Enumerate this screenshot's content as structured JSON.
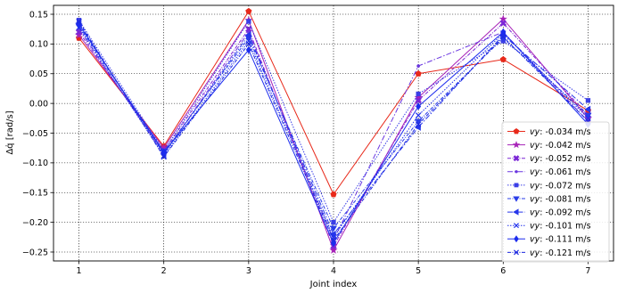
{
  "chart_data": {
    "type": "line",
    "xlabel": "Joint index",
    "ylabel": "Δq̇ [rad/s]",
    "x": [
      1,
      2,
      3,
      4,
      5,
      6,
      7
    ],
    "xlim": [
      0.7,
      7.3
    ],
    "ylim": [
      -0.265,
      0.165
    ],
    "xticks": [
      1,
      2,
      3,
      4,
      5,
      6,
      7
    ],
    "yticks": [
      0.15,
      0.1,
      0.05,
      0.0,
      -0.05,
      -0.1,
      -0.15,
      -0.2,
      -0.25
    ],
    "ytick_labels": [
      "0.15",
      "0.10",
      "0.05",
      "0.00",
      "−0.05",
      "−0.10",
      "−0.15",
      "−0.20",
      "−0.25"
    ],
    "grid": true,
    "legend_position": "lower-right",
    "series": [
      {
        "name": "-0.034 m/s",
        "prefix": "vy",
        "color": "#e8291a",
        "marker": "pentagon",
        "dash": "",
        "values": [
          0.11,
          -0.072,
          0.155,
          -0.153,
          0.05,
          0.074,
          -0.012
        ]
      },
      {
        "name": "-0.042 m/s",
        "prefix": "vy",
        "color": "#a722b8",
        "marker": "star",
        "dash": "",
        "values": [
          0.115,
          -0.075,
          0.14,
          -0.247,
          0.01,
          0.142,
          -0.025
        ]
      },
      {
        "name": "-0.052 m/s",
        "prefix": "vy",
        "color": "#7b27d6",
        "marker": "x-thick",
        "dash": "4,1.5,1,1.5",
        "values": [
          0.12,
          -0.08,
          0.125,
          -0.24,
          0.005,
          0.135,
          -0.02
        ]
      },
      {
        "name": "-0.061 m/s",
        "prefix": "vy",
        "color": "#6a36e0",
        "marker": "dot",
        "dash": "6,2,1.5,2",
        "values": [
          0.125,
          -0.085,
          0.12,
          -0.23,
          0.063,
          0.12,
          -0.03
        ]
      },
      {
        "name": "-0.072 m/s",
        "prefix": "vy",
        "color": "#3b3ee6",
        "marker": "square",
        "dash": "1.5,1.5",
        "values": [
          0.14,
          -0.08,
          0.138,
          -0.2,
          0.016,
          0.105,
          0.005
        ]
      },
      {
        "name": "-0.081 m/s",
        "prefix": "vy",
        "color": "#2a3ce8",
        "marker": "triangle-down",
        "dash": "4,1.5,1,1.5",
        "values": [
          0.13,
          -0.082,
          0.11,
          -0.21,
          -0.03,
          0.11,
          -0.02
        ]
      },
      {
        "name": "-0.092 m/s",
        "prefix": "vy",
        "color": "#2636ea",
        "marker": "triangle-left",
        "dash": "6,2,1.5,2",
        "values": [
          0.135,
          -0.085,
          0.115,
          -0.22,
          -0.04,
          0.115,
          -0.01
        ]
      },
      {
        "name": "-0.101 m/s",
        "prefix": "vy",
        "color": "#2030ec",
        "marker": "x",
        "dash": "1.5,1.5",
        "values": [
          0.128,
          -0.088,
          0.105,
          -0.225,
          -0.02,
          0.118,
          -0.025
        ]
      },
      {
        "name": "-0.111 m/s",
        "prefix": "vy",
        "color": "#1c2cee",
        "marker": "diamond",
        "dash": "",
        "values": [
          0.133,
          -0.082,
          0.09,
          -0.235,
          -0.005,
          0.12,
          -0.035
        ]
      },
      {
        "name": "-0.121 m/s",
        "prefix": "vy",
        "color": "#1e2ae0",
        "marker": "x",
        "dash": "4,1.5,1,1.5",
        "values": [
          0.138,
          -0.09,
          0.1,
          -0.23,
          -0.035,
          0.112,
          -0.03
        ]
      }
    ]
  }
}
